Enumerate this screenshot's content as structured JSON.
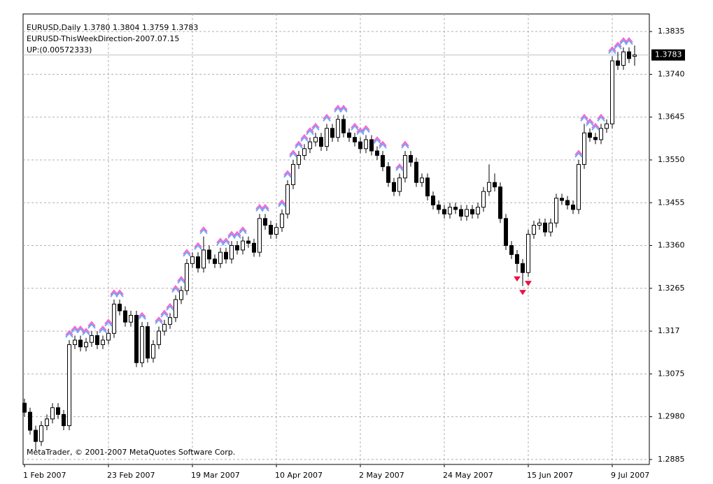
{
  "chart_data": {
    "type": "candlestick",
    "title": "EURUSD,Daily  1.3780 1.3804 1.3759 1.3783",
    "subtitle": "EURUSD-ThisWeekDirection-2007.07.15",
    "annotation": "UP:(0.00572333)",
    "footer": "MetaTrader, © 2001-2007 MetaQuotes Software Corp.",
    "categories": [
      "1 Feb 2007",
      null,
      null,
      null,
      null,
      null,
      null,
      null,
      null,
      null,
      null,
      null,
      null,
      null,
      null,
      "23 Feb 2007",
      null,
      null,
      null,
      null,
      null,
      null,
      null,
      null,
      null,
      null,
      null,
      null,
      null,
      null,
      "19 Mar 2007",
      null,
      null,
      null,
      null,
      null,
      null,
      null,
      null,
      null,
      null,
      null,
      null,
      null,
      null,
      "10 Apr 2007",
      null,
      null,
      null,
      null,
      null,
      null,
      null,
      null,
      null,
      null,
      null,
      null,
      null,
      null,
      "2 May 2007",
      null,
      null,
      null,
      null,
      null,
      null,
      null,
      null,
      null,
      null,
      null,
      null,
      null,
      null,
      "24 May 2007",
      null,
      null,
      null,
      null,
      null,
      null,
      null,
      null,
      null,
      null,
      null,
      null,
      null,
      null,
      "15 Jun 2007",
      null,
      null,
      null,
      null,
      null,
      null,
      null,
      null,
      null,
      null,
      null,
      null,
      null,
      null,
      "9 Jul 2007",
      null,
      null,
      null,
      null
    ],
    "open": [
      1.301,
      1.299,
      1.295,
      1.2925,
      1.296,
      1.2975,
      1.3,
      1.2985,
      1.296,
      1.314,
      1.315,
      1.3135,
      1.3145,
      1.316,
      1.314,
      1.315,
      1.3165,
      1.323,
      1.3215,
      1.319,
      1.3205,
      1.31,
      1.318,
      1.311,
      1.314,
      1.317,
      1.3185,
      1.32,
      1.324,
      1.326,
      1.332,
      1.3335,
      1.331,
      1.335,
      1.333,
      1.332,
      1.3345,
      1.333,
      1.336,
      1.335,
      1.337,
      1.3365,
      1.3345,
      1.342,
      1.3405,
      1.3385,
      1.34,
      1.343,
      1.3495,
      1.354,
      1.356,
      1.3575,
      1.359,
      1.36,
      1.358,
      1.362,
      1.36,
      1.364,
      1.361,
      1.36,
      1.359,
      1.3575,
      1.3595,
      1.357,
      1.356,
      1.3535,
      1.35,
      1.348,
      1.351,
      1.356,
      1.3545,
      1.35,
      1.351,
      1.347,
      1.345,
      1.344,
      1.343,
      1.3445,
      1.344,
      1.3425,
      1.344,
      1.343,
      1.3445,
      1.348,
      1.35,
      1.349,
      1.342,
      1.336,
      1.334,
      1.332,
      1.33,
      1.3385,
      1.3405,
      1.341,
      1.339,
      1.341,
      1.3465,
      1.346,
      1.345,
      1.344,
      1.354,
      1.361,
      1.36,
      1.3595,
      1.362,
      1.363,
      1.377,
      1.376,
      1.379,
      1.378
    ],
    "high": [
      1.302,
      1.3,
      1.296,
      1.297,
      1.2985,
      1.301,
      1.301,
      1.2995,
      1.315,
      1.316,
      1.316,
      1.3155,
      1.317,
      1.317,
      1.316,
      1.3175,
      1.324,
      1.324,
      1.3225,
      1.3215,
      1.3215,
      1.319,
      1.319,
      1.315,
      1.318,
      1.3195,
      1.321,
      1.325,
      1.327,
      1.333,
      1.3345,
      1.3345,
      1.338,
      1.336,
      1.334,
      1.3355,
      1.3355,
      1.337,
      1.337,
      1.338,
      1.338,
      1.3375,
      1.343,
      1.343,
      1.3415,
      1.341,
      1.344,
      1.3505,
      1.355,
      1.357,
      1.3585,
      1.36,
      1.361,
      1.361,
      1.363,
      1.363,
      1.365,
      1.365,
      1.362,
      1.361,
      1.36,
      1.3605,
      1.3605,
      1.358,
      1.357,
      1.3545,
      1.351,
      1.352,
      1.357,
      1.357,
      1.3555,
      1.352,
      1.352,
      1.348,
      1.346,
      1.345,
      1.3455,
      1.3455,
      1.345,
      1.345,
      1.345,
      1.3455,
      1.349,
      1.354,
      1.352,
      1.35,
      1.343,
      1.337,
      1.335,
      1.333,
      1.3395,
      1.3415,
      1.342,
      1.342,
      1.342,
      1.3475,
      1.3475,
      1.347,
      1.346,
      1.355,
      1.363,
      1.362,
      1.361,
      1.363,
      1.364,
      1.378,
      1.379,
      1.38,
      1.38,
      1.3804
    ],
    "low": [
      1.298,
      1.294,
      1.2905,
      1.2915,
      1.295,
      1.2965,
      1.2975,
      1.295,
      1.295,
      1.313,
      1.3125,
      1.3125,
      1.3135,
      1.313,
      1.313,
      1.314,
      1.3155,
      1.3205,
      1.318,
      1.318,
      1.309,
      1.309,
      1.31,
      1.31,
      1.313,
      1.316,
      1.3175,
      1.319,
      1.323,
      1.325,
      1.331,
      1.33,
      1.33,
      1.332,
      1.331,
      1.331,
      1.332,
      1.332,
      1.334,
      1.334,
      1.3355,
      1.3335,
      1.3335,
      1.3395,
      1.3375,
      1.3375,
      1.339,
      1.342,
      1.3485,
      1.353,
      1.355,
      1.3565,
      1.358,
      1.357,
      1.357,
      1.359,
      1.359,
      1.36,
      1.359,
      1.358,
      1.3565,
      1.3565,
      1.356,
      1.355,
      1.3525,
      1.349,
      1.347,
      1.347,
      1.35,
      1.3535,
      1.349,
      1.349,
      1.346,
      1.344,
      1.343,
      1.342,
      1.342,
      1.343,
      1.3415,
      1.3415,
      1.342,
      1.342,
      1.3435,
      1.347,
      1.348,
      1.341,
      1.335,
      1.333,
      1.33,
      1.327,
      1.329,
      1.3375,
      1.3395,
      1.338,
      1.338,
      1.34,
      1.345,
      1.344,
      1.343,
      1.343,
      1.353,
      1.359,
      1.3585,
      1.3585,
      1.361,
      1.362,
      1.375,
      1.375,
      1.3765,
      1.3759
    ],
    "close": [
      1.299,
      1.295,
      1.2925,
      1.296,
      1.2975,
      1.3,
      1.2985,
      1.296,
      1.314,
      1.315,
      1.3135,
      1.3145,
      1.316,
      1.314,
      1.315,
      1.3165,
      1.323,
      1.3215,
      1.319,
      1.3205,
      1.31,
      1.318,
      1.311,
      1.314,
      1.317,
      1.3185,
      1.32,
      1.324,
      1.326,
      1.332,
      1.3335,
      1.331,
      1.335,
      1.333,
      1.332,
      1.3345,
      1.333,
      1.336,
      1.335,
      1.337,
      1.3365,
      1.3345,
      1.342,
      1.3405,
      1.3385,
      1.34,
      1.343,
      1.3495,
      1.354,
      1.356,
      1.3575,
      1.359,
      1.36,
      1.358,
      1.362,
      1.36,
      1.364,
      1.361,
      1.36,
      1.359,
      1.3575,
      1.3595,
      1.357,
      1.356,
      1.3535,
      1.35,
      1.348,
      1.351,
      1.356,
      1.3545,
      1.35,
      1.351,
      1.347,
      1.345,
      1.344,
      1.343,
      1.3445,
      1.344,
      1.3425,
      1.344,
      1.343,
      1.3445,
      1.348,
      1.35,
      1.349,
      1.342,
      1.336,
      1.334,
      1.332,
      1.33,
      1.3385,
      1.3405,
      1.341,
      1.339,
      1.341,
      1.3465,
      1.346,
      1.345,
      1.344,
      1.354,
      1.361,
      1.36,
      1.3595,
      1.362,
      1.363,
      1.377,
      1.376,
      1.379,
      1.3775,
      1.3783
    ],
    "up_signals": [
      8,
      9,
      10,
      11,
      12,
      14,
      15,
      16,
      17,
      21,
      24,
      25,
      26,
      27,
      28,
      29,
      31,
      32,
      35,
      36,
      37,
      38,
      39,
      42,
      43,
      46,
      47,
      48,
      49,
      50,
      51,
      52,
      54,
      56,
      57,
      59,
      60,
      61,
      63,
      64,
      67,
      68,
      99,
      100,
      101,
      102,
      103,
      105,
      106,
      107,
      108
    ],
    "down_signals": [
      88,
      89,
      90
    ],
    "up_color": "#ff66cc",
    "up_color2": "#66aaff",
    "down_color": "#ee1144",
    "last_price": 1.3783,
    "ylim": [
      1.2874,
      1.3874
    ],
    "yticks": [
      1.2885,
      {
        "value": 1.298,
        "label": "1.2980"
      },
      1.3075,
      1.317,
      1.3265,
      {
        "value": 1.336,
        "label": "1.3360"
      },
      1.3455,
      {
        "value": 1.355,
        "label": "1.3550"
      },
      1.3645,
      {
        "value": 1.374,
        "label": "1.3740"
      },
      1.3835
    ],
    "grid": true
  }
}
